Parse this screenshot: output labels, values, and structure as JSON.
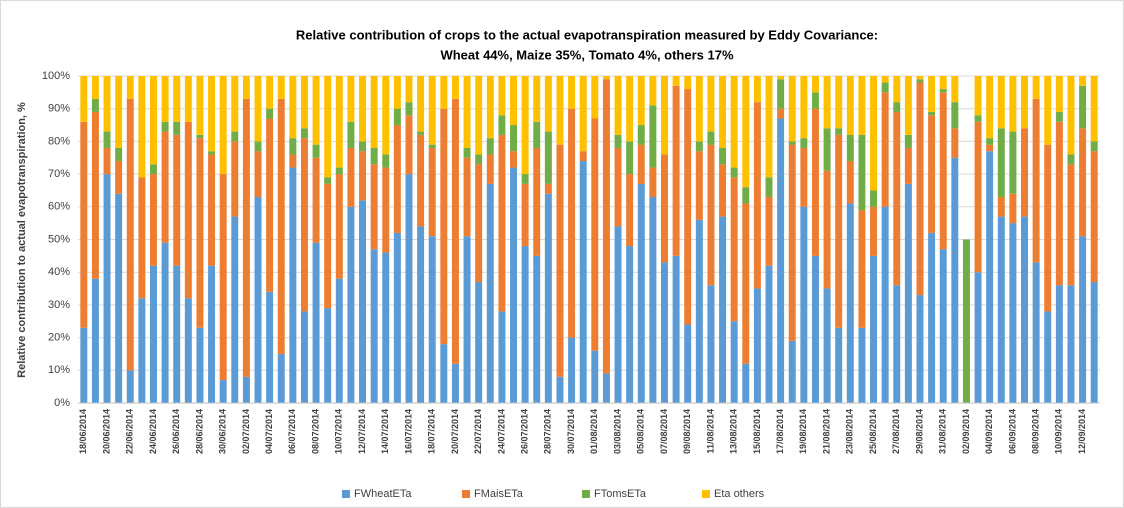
{
  "chart_data": {
    "type": "stacked_bar",
    "title": [
      "Relative contribution of  crops to the actual evapotranspiration measured by Eddy Covariance:",
      "Wheat 44%, Maize 35%, Tomato 4%, others 17%"
    ],
    "y_label": "Relative contribution to actual evapotranspiration, %",
    "categories": [
      "18/06/2014",
      null,
      "20/06/2014",
      null,
      "22/06/2014",
      null,
      "24/06/2014",
      null,
      "26/06/2014",
      null,
      "28/06/2014",
      null,
      "30/06/2014",
      null,
      "02/07/2014",
      null,
      "04/07/2014",
      null,
      "06/07/2014",
      null,
      "08/07/2014",
      null,
      "10/07/2014",
      null,
      "12/07/2014",
      null,
      "14/07/2014",
      null,
      "16/07/2014",
      null,
      "18/07/2014",
      null,
      "20/07/2014",
      null,
      "22/07/2014",
      null,
      "24/07/2014",
      null,
      "26/07/2014",
      null,
      "28/07/2014",
      null,
      "30/07/2014",
      null,
      "01/08/2014",
      null,
      "03/08/2014",
      null,
      "05/08/2014",
      null,
      "07/08/2014",
      null,
      "09/08/2014",
      null,
      "11/08/2014",
      null,
      "13/08/2014",
      null,
      "15/08/2014",
      null,
      "17/08/2014",
      null,
      "19/08/2014",
      null,
      "21/08/2014",
      null,
      "23/08/2014",
      null,
      "25/08/2014",
      null,
      "27/08/2014",
      null,
      "29/08/2014",
      null,
      "31/08/2014",
      null,
      "02/09/2014",
      null,
      "04/09/2014",
      null,
      "06/09/2014",
      null,
      "08/09/2014",
      null,
      "10/09/2014",
      null,
      "12/09/2014",
      null
    ],
    "series": [
      {
        "name": "FWheatETa",
        "color": "#5b9bd5",
        "values": [
          23,
          38,
          70,
          64,
          10,
          32,
          42,
          49,
          42,
          32,
          23,
          42,
          7,
          57,
          8,
          63,
          34,
          15,
          72,
          28,
          49,
          29,
          38,
          60,
          62,
          47,
          46,
          52,
          70,
          54,
          51,
          18,
          12,
          51,
          37,
          67,
          28,
          72,
          48,
          45,
          64,
          8,
          20,
          74,
          16,
          9,
          54,
          48,
          67,
          63,
          43,
          45,
          24,
          56,
          36,
          57,
          25,
          12,
          35,
          42,
          87,
          19,
          60,
          45,
          35,
          23,
          61,
          23,
          45,
          60,
          36,
          67,
          33,
          52,
          47,
          75,
          0,
          40,
          77,
          57,
          55,
          57,
          43,
          28,
          36,
          36,
          51,
          37
        ]
      },
      {
        "name": "FMaisETa",
        "color": "#ed7d31",
        "values": [
          63,
          51,
          8,
          10,
          83,
          37,
          28,
          34,
          40,
          54,
          58,
          34,
          63,
          23,
          85,
          14,
          53,
          78,
          4,
          53,
          26,
          38,
          32,
          18,
          15,
          26,
          26,
          33,
          18,
          28,
          27,
          72,
          81,
          24,
          36,
          9,
          54,
          5,
          19,
          33,
          3,
          71,
          70,
          3,
          71,
          90,
          24,
          22,
          12,
          9,
          33,
          52,
          72,
          21,
          43,
          16,
          44,
          49,
          57,
          21,
          3,
          60,
          18,
          45,
          36,
          59,
          13,
          36,
          15,
          35,
          53,
          11,
          65,
          36,
          48,
          9,
          0,
          46,
          2,
          6,
          9,
          27,
          50,
          51,
          50,
          37,
          33,
          40
        ]
      },
      {
        "name": "FTomsETa",
        "color": "#70ad47",
        "values": [
          0,
          4,
          5,
          4,
          0,
          0,
          3,
          3,
          4,
          0,
          1,
          1,
          0,
          3,
          0,
          3,
          3,
          0,
          5,
          3,
          4,
          2,
          2,
          8,
          3,
          5,
          4,
          5,
          4,
          1,
          1,
          0,
          0,
          3,
          3,
          5,
          6,
          8,
          3,
          8,
          16,
          0,
          0,
          0,
          0,
          0,
          4,
          10,
          6,
          19,
          0,
          0,
          0,
          3,
          4,
          5,
          3,
          5,
          0,
          6,
          9,
          1,
          3,
          5,
          13,
          2,
          8,
          23,
          5,
          3,
          3,
          4,
          1,
          1,
          1,
          8,
          50,
          2,
          2,
          21,
          19,
          0,
          0,
          0,
          3,
          3,
          13,
          3
        ]
      },
      {
        "name": "Eta others",
        "color": "#ffc000",
        "values": [
          14,
          7,
          17,
          22,
          7,
          31,
          27,
          14,
          14,
          14,
          18,
          23,
          30,
          17,
          7,
          20,
          10,
          7,
          19,
          16,
          21,
          31,
          28,
          14,
          20,
          22,
          24,
          10,
          8,
          17,
          21,
          10,
          7,
          22,
          24,
          19,
          12,
          15,
          30,
          14,
          17,
          21,
          10,
          23,
          13,
          1,
          18,
          20,
          15,
          9,
          24,
          3,
          4,
          20,
          17,
          22,
          28,
          34,
          8,
          31,
          1,
          20,
          19,
          5,
          16,
          16,
          18,
          18,
          35,
          2,
          8,
          18,
          1,
          11,
          4,
          8,
          0,
          12,
          19,
          16,
          17,
          16,
          7,
          21,
          11,
          24,
          3,
          20
        ]
      }
    ],
    "ylim": [
      0,
      100
    ],
    "yticks": [
      {
        "value": 0,
        "label": "0%"
      },
      {
        "value": 10,
        "label": "10%"
      },
      {
        "value": 20,
        "label": "20%"
      },
      {
        "value": 30,
        "label": "30%"
      },
      {
        "value": 40,
        "label": "40%"
      },
      {
        "value": 50,
        "label": "50%"
      },
      {
        "value": 60,
        "label": "60%"
      },
      {
        "value": 70,
        "label": "70%"
      },
      {
        "value": 80,
        "label": "80%"
      },
      {
        "value": 90,
        "label": "90%"
      },
      {
        "value": 100,
        "label": "100%"
      }
    ],
    "grid": true,
    "legend": "bottom"
  }
}
